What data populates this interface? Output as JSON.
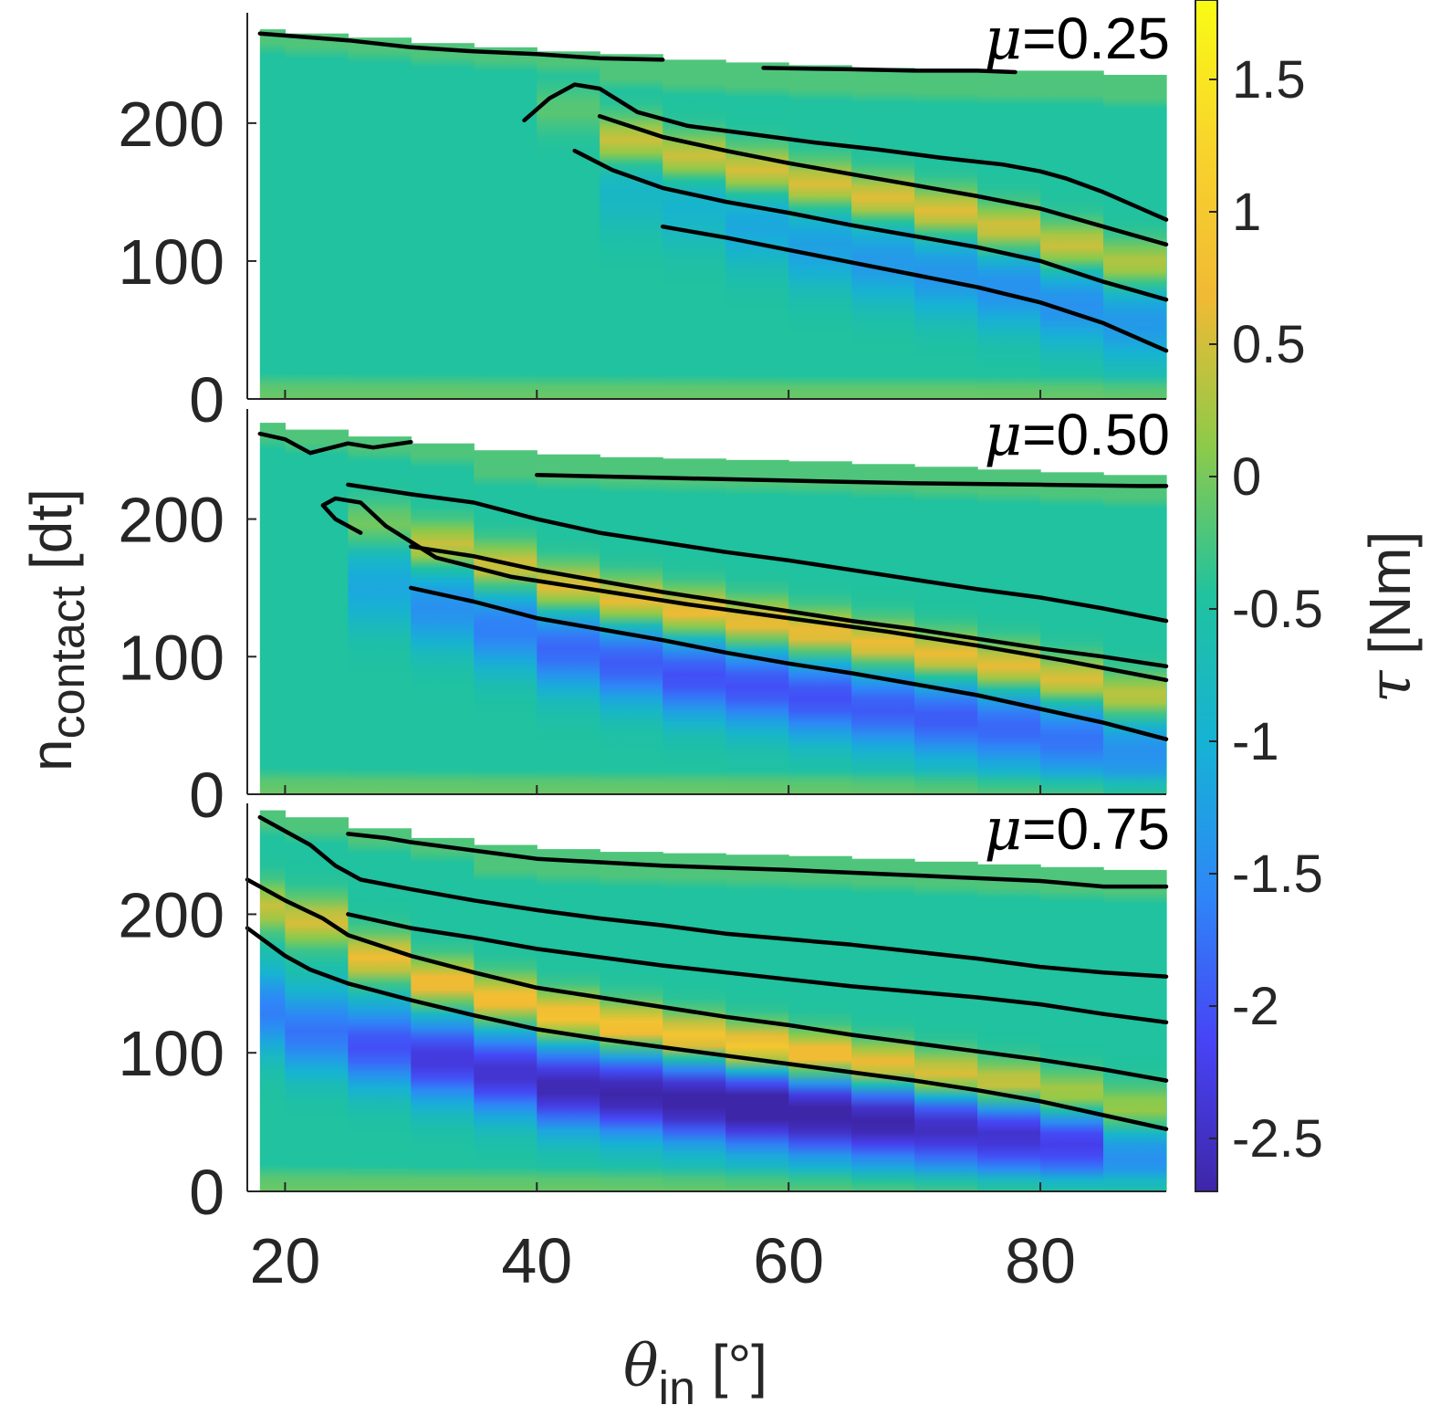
{
  "chart_data": {
    "type": "heatmap",
    "x": [
      18,
      20,
      25,
      30,
      35,
      40,
      45,
      50,
      55,
      60,
      65,
      70,
      75,
      80,
      85,
      90
    ],
    "xlim": [
      17,
      90
    ],
    "ylim": [
      0,
      280
    ],
    "xlabel": {
      "symbol": "θ",
      "sub": "in",
      "unit": " [°]"
    },
    "ylabel": {
      "main": "n",
      "sub": "contact",
      "unit": " [dt]"
    },
    "xticks": [
      "20",
      "40",
      "60",
      "80"
    ],
    "yticks": [
      "0",
      "100",
      "200"
    ],
    "colorbar": {
      "label": {
        "symbol": "τ",
        "unit": " [Nm]"
      },
      "range": [
        -2.7,
        1.8
      ],
      "ticks": [
        1.5,
        1,
        0.5,
        0,
        -0.5,
        -1,
        -1.5,
        -2,
        -2.5
      ],
      "tick_labels": [
        "1.5",
        "1",
        "0.5",
        "0",
        "-0.5",
        "-1",
        "-1.5",
        "-2",
        "-2.5"
      ],
      "colormap": [
        "#3e26a8",
        "#4743f6",
        "#2e87f7",
        "#16b2d5",
        "#20c29f",
        "#8dca4a",
        "#f0ba34",
        "#f9d32c",
        "#f9fb15"
      ]
    },
    "panels": [
      {
        "name": "μ=0.25",
        "label": {
          "symbol": "μ",
          "value": "=0.25"
        },
        "tops": [
          268,
          265,
          262,
          258,
          255,
          252,
          250,
          246,
          244,
          242,
          240,
          239,
          238,
          238,
          235,
          234
        ],
        "contours": [
          {
            "x": [
              18,
              25,
              30,
              35,
              40,
              45,
              50
            ],
            "y": [
              265,
              260,
              255,
              252,
              250,
              247,
              246
            ]
          },
          {
            "x": [
              58,
              65,
              70,
              75,
              78
            ],
            "y": [
              240,
              239,
              238,
              238,
              237
            ]
          },
          {
            "x": [
              39,
              41,
              43,
              45,
              48,
              52,
              57,
              62,
              67,
              72,
              77,
              80,
              82,
              85,
              88,
              90
            ],
            "y": [
              202,
              218,
              228,
              225,
              208,
              198,
              192,
              186,
              181,
              175,
              170,
              165,
              160,
              150,
              138,
              130
            ]
          },
          {
            "x": [
              45,
              50,
              55,
              60,
              65,
              70,
              75,
              80,
              85,
              90
            ],
            "y": [
              205,
              190,
              180,
              171,
              163,
              155,
              147,
              138,
              125,
              112
            ]
          },
          {
            "x": [
              43,
              46,
              50,
              55,
              60,
              65,
              70,
              75,
              80,
              85,
              90
            ],
            "y": [
              180,
              166,
              153,
              143,
              135,
              126,
              118,
              110,
              100,
              85,
              72
            ]
          },
          {
            "x": [
              50,
              55,
              60,
              65,
              70,
              75,
              80,
              85,
              90
            ],
            "y": [
              125,
              117,
              108,
              99,
              90,
              81,
              70,
              55,
              35
            ]
          }
        ],
        "bands": [
          {
            "x0": 40,
            "c": 210,
            "amp": 0.3
          },
          {
            "x0": 45,
            "c": 187,
            "amp": 1.0
          },
          {
            "x0": 50,
            "c": 175,
            "amp": 1.05
          },
          {
            "x0": 55,
            "c": 165,
            "amp": 1.1
          },
          {
            "x0": 60,
            "c": 155,
            "amp": 1.1
          },
          {
            "x0": 65,
            "c": 145,
            "amp": 1.15
          },
          {
            "x0": 70,
            "c": 135,
            "amp": 1.15
          },
          {
            "x0": 75,
            "c": 123,
            "amp": 1.1
          },
          {
            "x0": 80,
            "c": 110,
            "amp": 1.05
          },
          {
            "x0": 85,
            "c": 97,
            "amp": 0.9
          }
        ],
        "dips": [
          {
            "x0": 45,
            "c": 150,
            "amp": -0.4
          },
          {
            "x0": 50,
            "c": 140,
            "amp": -0.5
          },
          {
            "x0": 55,
            "c": 125,
            "amp": -0.7
          },
          {
            "x0": 60,
            "c": 110,
            "amp": -0.8
          },
          {
            "x0": 65,
            "c": 100,
            "amp": -0.9
          },
          {
            "x0": 70,
            "c": 90,
            "amp": -0.95
          },
          {
            "x0": 75,
            "c": 80,
            "amp": -1.0
          },
          {
            "x0": 80,
            "c": 68,
            "amp": -1.0
          },
          {
            "x0": 85,
            "c": 55,
            "amp": -0.9
          }
        ]
      },
      {
        "name": "μ=0.50",
        "label": {
          "symbol": "μ",
          "value": "=0.50"
        },
        "tops": [
          270,
          265,
          260,
          255,
          250,
          247,
          245,
          244,
          243,
          242,
          240,
          238,
          236,
          234,
          232,
          230
        ],
        "contours": [
          {
            "x": [
              18,
              20,
              22,
              25,
              27,
              30
            ],
            "y": [
              262,
              258,
              248,
              255,
              252,
              256
            ]
          },
          {
            "x": [
              40,
              50,
              60,
              70,
              80,
              88,
              90
            ],
            "y": [
              232,
              230,
              228,
              226,
              225,
              224,
              224
            ]
          },
          {
            "x": [
              25,
              30,
              35,
              40,
              45,
              50,
              55,
              60,
              65,
              70,
              75,
              80,
              85,
              90
            ],
            "y": [
              225,
              218,
              212,
              200,
              190,
              183,
              176,
              170,
              163,
              156,
              149,
              143,
              135,
              126
            ]
          },
          {
            "x": [
              30,
              35,
              40,
              45,
              50,
              55,
              60,
              65,
              70,
              75,
              80,
              85,
              90
            ],
            "y": [
              180,
              173,
              163,
              155,
              147,
              140,
              133,
              126,
              120,
              113,
              106,
              100,
              93
            ]
          },
          {
            "x": [
              26,
              24,
              23,
              24,
              26,
              28,
              32,
              38,
              45,
              52,
              60,
              68,
              75,
              82,
              90
            ],
            "y": [
              190,
              200,
              210,
              215,
              212,
              195,
              172,
              158,
              148,
              138,
              128,
              118,
              108,
              97,
              83
            ]
          },
          {
            "x": [
              30,
              35,
              40,
              45,
              50,
              55,
              60,
              65,
              70,
              75,
              80,
              85,
              90
            ],
            "y": [
              150,
              140,
              128,
              120,
              112,
              103,
              95,
              88,
              80,
              72,
              62,
              52,
              40
            ]
          }
        ],
        "bands": [
          {
            "x0": 25,
            "c": 195,
            "amp": 0.5
          },
          {
            "x0": 30,
            "c": 180,
            "amp": 1.0
          },
          {
            "x0": 35,
            "c": 165,
            "amp": 1.1
          },
          {
            "x0": 40,
            "c": 150,
            "amp": 1.2
          },
          {
            "x0": 45,
            "c": 140,
            "amp": 1.25
          },
          {
            "x0": 50,
            "c": 132,
            "amp": 1.3
          },
          {
            "x0": 55,
            "c": 124,
            "amp": 1.3
          },
          {
            "x0": 60,
            "c": 116,
            "amp": 1.3
          },
          {
            "x0": 65,
            "c": 108,
            "amp": 1.3
          },
          {
            "x0": 70,
            "c": 100,
            "amp": 1.3
          },
          {
            "x0": 75,
            "c": 92,
            "amp": 1.25
          },
          {
            "x0": 80,
            "c": 82,
            "amp": 1.2
          },
          {
            "x0": 85,
            "c": 70,
            "amp": 1.0
          }
        ],
        "dips": [
          {
            "x0": 25,
            "c": 150,
            "amp": -0.7
          },
          {
            "x0": 30,
            "c": 135,
            "amp": -1.0
          },
          {
            "x0": 35,
            "c": 120,
            "amp": -1.2
          },
          {
            "x0": 40,
            "c": 105,
            "amp": -1.4
          },
          {
            "x0": 45,
            "c": 95,
            "amp": -1.5
          },
          {
            "x0": 50,
            "c": 85,
            "amp": -1.6
          },
          {
            "x0": 55,
            "c": 78,
            "amp": -1.6
          },
          {
            "x0": 60,
            "c": 70,
            "amp": -1.6
          },
          {
            "x0": 65,
            "c": 62,
            "amp": -1.5
          },
          {
            "x0": 70,
            "c": 55,
            "amp": -1.5
          },
          {
            "x0": 75,
            "c": 48,
            "amp": -1.4
          },
          {
            "x0": 80,
            "c": 40,
            "amp": -1.3
          },
          {
            "x0": 85,
            "c": 30,
            "amp": -1.0
          }
        ]
      },
      {
        "name": "μ=0.75",
        "label": {
          "symbol": "μ",
          "value": "=0.75"
        },
        "tops": [
          275,
          270,
          262,
          255,
          250,
          247,
          245,
          244,
          243,
          242,
          240,
          238,
          236,
          234,
          232,
          230
        ],
        "contours": [
          {
            "x": [
              25,
              28,
              30,
              35,
              40,
              50,
              60,
              70,
              80,
              85,
              90
            ],
            "y": [
              258,
              255,
              252,
              246,
              240,
              235,
              232,
              228,
              224,
              220,
              220
            ]
          },
          {
            "x": [
              18,
              20,
              22,
              24,
              26,
              30,
              35,
              40,
              45,
              50,
              55,
              60,
              65,
              70,
              75,
              80,
              85,
              90
            ],
            "y": [
              270,
              260,
              250,
              235,
              225,
              218,
              210,
              203,
              197,
              192,
              186,
              182,
              178,
              173,
              168,
              162,
              158,
              155
            ]
          },
          {
            "x": [
              25,
              30,
              35,
              40,
              45,
              50,
              55,
              60,
              65,
              70,
              75,
              80,
              85,
              90
            ],
            "y": [
              200,
              190,
              183,
              175,
              169,
              163,
              158,
              153,
              148,
              144,
              140,
              135,
              128,
              122
            ]
          },
          {
            "x": [
              17,
              20,
              23,
              25,
              30,
              35,
              40,
              45,
              50,
              55,
              60,
              65,
              70,
              75,
              80,
              85,
              90
            ],
            "y": [
              225,
              210,
              197,
              185,
              170,
              158,
              147,
              140,
              133,
              126,
              120,
              113,
              107,
              101,
              95,
              88,
              80
            ]
          },
          {
            "x": [
              17,
              20,
              22,
              25,
              30,
              35,
              40,
              45,
              50,
              55,
              60,
              65,
              70,
              75,
              80,
              85,
              90
            ],
            "y": [
              190,
              170,
              160,
              150,
              138,
              127,
              117,
              110,
              104,
              98,
              92,
              86,
              80,
              73,
              65,
              55,
              45
            ]
          }
        ],
        "bands": [
          {
            "x0": 18,
            "c": 205,
            "amp": 0.9
          },
          {
            "x0": 20,
            "c": 195,
            "amp": 1.0
          },
          {
            "x0": 25,
            "c": 168,
            "amp": 1.2
          },
          {
            "x0": 30,
            "c": 150,
            "amp": 1.3
          },
          {
            "x0": 35,
            "c": 138,
            "amp": 1.4
          },
          {
            "x0": 40,
            "c": 126,
            "amp": 1.5
          },
          {
            "x0": 45,
            "c": 118,
            "amp": 1.55
          },
          {
            "x0": 50,
            "c": 110,
            "amp": 1.6
          },
          {
            "x0": 55,
            "c": 103,
            "amp": 1.7
          },
          {
            "x0": 60,
            "c": 97,
            "amp": 1.6
          },
          {
            "x0": 65,
            "c": 90,
            "amp": 1.5
          },
          {
            "x0": 70,
            "c": 83,
            "amp": 1.4
          },
          {
            "x0": 75,
            "c": 76,
            "amp": 1.35
          },
          {
            "x0": 80,
            "c": 68,
            "amp": 1.2
          },
          {
            "x0": 85,
            "c": 58,
            "amp": 0.9
          }
        ],
        "dips": [
          {
            "x0": 18,
            "c": 130,
            "amp": -1.2
          },
          {
            "x0": 20,
            "c": 115,
            "amp": -1.3
          },
          {
            "x0": 25,
            "c": 105,
            "amp": -1.6
          },
          {
            "x0": 30,
            "c": 95,
            "amp": -1.9
          },
          {
            "x0": 35,
            "c": 85,
            "amp": -2.0
          },
          {
            "x0": 40,
            "c": 75,
            "amp": -2.2
          },
          {
            "x0": 45,
            "c": 70,
            "amp": -2.3
          },
          {
            "x0": 50,
            "c": 65,
            "amp": -2.4
          },
          {
            "x0": 55,
            "c": 60,
            "amp": -2.5
          },
          {
            "x0": 60,
            "c": 55,
            "amp": -2.4
          },
          {
            "x0": 65,
            "c": 50,
            "amp": -2.3
          },
          {
            "x0": 70,
            "c": 45,
            "amp": -2.1
          },
          {
            "x0": 75,
            "c": 40,
            "amp": -2.0
          },
          {
            "x0": 80,
            "c": 35,
            "amp": -1.8
          },
          {
            "x0": 85,
            "c": 25,
            "amp": -1.0
          }
        ]
      }
    ]
  }
}
